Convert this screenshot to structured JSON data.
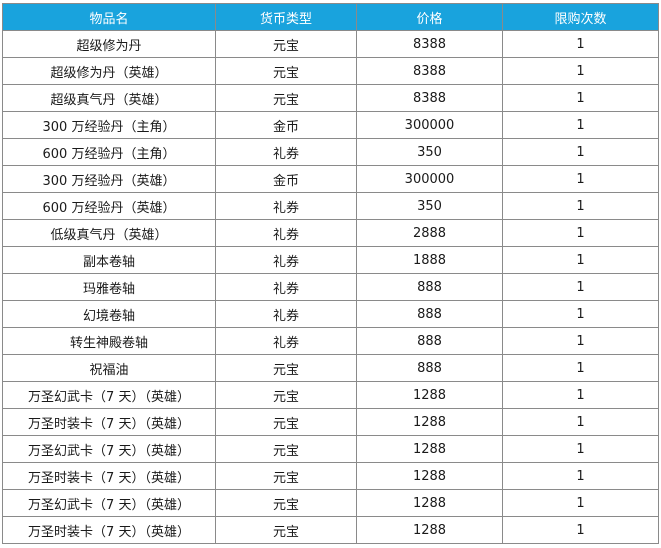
{
  "table": {
    "headers": [
      "物品名",
      "货币类型",
      "价格",
      "限购次数"
    ],
    "rows": [
      [
        "超级修为丹",
        "元宝",
        "8388",
        "1"
      ],
      [
        "超级修为丹（英雄）",
        "元宝",
        "8388",
        "1"
      ],
      [
        "超级真气丹（英雄）",
        "元宝",
        "8388",
        "1"
      ],
      [
        "300 万经验丹（主角）",
        "金币",
        "300000",
        "1"
      ],
      [
        "600 万经验丹（主角）",
        "礼券",
        "350",
        "1"
      ],
      [
        "300 万经验丹（英雄）",
        "金币",
        "300000",
        "1"
      ],
      [
        "600 万经验丹（英雄）",
        "礼券",
        "350",
        "1"
      ],
      [
        "低级真气丹（英雄）",
        "礼券",
        "2888",
        "1"
      ],
      [
        "副本卷轴",
        "礼券",
        "1888",
        "1"
      ],
      [
        "玛雅卷轴",
        "礼券",
        "888",
        "1"
      ],
      [
        "幻境卷轴",
        "礼券",
        "888",
        "1"
      ],
      [
        "转生神殿卷轴",
        "礼券",
        "888",
        "1"
      ],
      [
        "祝福油",
        "元宝",
        "888",
        "1"
      ],
      [
        "万圣幻武卡（7 天）（英雄）",
        "元宝",
        "1288",
        "1"
      ],
      [
        "万圣时装卡（7 天）（英雄）",
        "元宝",
        "1288",
        "1"
      ],
      [
        "万圣幻武卡（7 天）（英雄）",
        "元宝",
        "1288",
        "1"
      ],
      [
        "万圣时装卡（7 天）（英雄）",
        "元宝",
        "1288",
        "1"
      ],
      [
        "万圣幻武卡（7 天）（英雄）",
        "元宝",
        "1288",
        "1"
      ],
      [
        "万圣时装卡（7 天）（英雄）",
        "元宝",
        "1288",
        "1"
      ]
    ]
  },
  "colors": {
    "header_bg": "#19a3dd",
    "header_text": "#ffffff",
    "border": "#8a8a8a"
  }
}
